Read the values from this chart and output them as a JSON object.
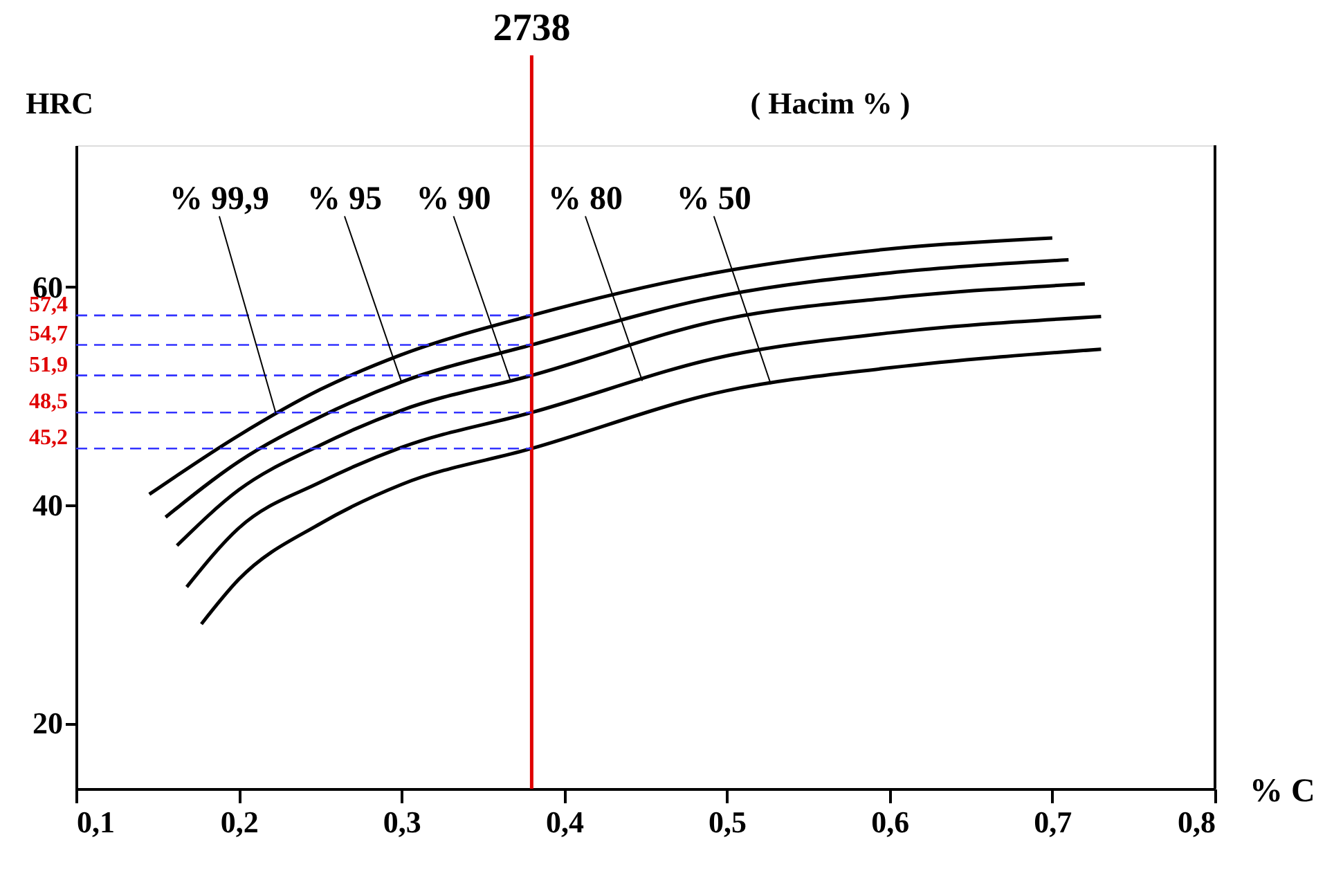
{
  "chart_data": {
    "type": "line",
    "xlabel": "% C",
    "ylabel": "HRC",
    "xlim": [
      0.1,
      0.8
    ],
    "ylim": [
      14,
      73
    ],
    "xticks": [
      {
        "value": 0.1,
        "label": "0,1"
      },
      {
        "value": 0.2,
        "label": "0,2"
      },
      {
        "value": 0.3,
        "label": "0,3"
      },
      {
        "value": 0.4,
        "label": "0,4"
      },
      {
        "value": 0.5,
        "label": "0,5"
      },
      {
        "value": 0.6,
        "label": "0,6"
      },
      {
        "value": 0.7,
        "label": "0,7"
      },
      {
        "value": 0.8,
        "label": "0,8"
      }
    ],
    "yticks": [
      20,
      40,
      60
    ],
    "grid": false,
    "legend": false,
    "marker": "none",
    "line_style": "solid",
    "series": [
      {
        "color": "#000000",
        "x": [
          0.145,
          0.2,
          0.25,
          0.3,
          0.38,
          0.5,
          0.6,
          0.7
        ],
        "values": [
          41.0,
          46.4,
          50.6,
          53.8,
          57.4,
          61.5,
          63.5,
          64.5
        ]
      },
      {
        "color": "#000000",
        "x": [
          0.155,
          0.2,
          0.25,
          0.3,
          0.38,
          0.5,
          0.6,
          0.71
        ],
        "values": [
          38.9,
          44.0,
          48.1,
          51.3,
          54.7,
          59.3,
          61.3,
          62.5
        ]
      },
      {
        "color": "#000000",
        "x": [
          0.162,
          0.2,
          0.25,
          0.3,
          0.38,
          0.5,
          0.6,
          0.72
        ],
        "values": [
          36.3,
          41.4,
          45.5,
          48.7,
          51.9,
          57.1,
          59.0,
          60.3
        ]
      },
      {
        "color": "#000000",
        "x": [
          0.168,
          0.2,
          0.25,
          0.3,
          0.38,
          0.5,
          0.6,
          0.73
        ],
        "values": [
          32.5,
          37.9,
          42.1,
          45.3,
          48.5,
          53.7,
          55.8,
          57.3
        ]
      },
      {
        "color": "#000000",
        "x": [
          0.177,
          0.2,
          0.25,
          0.3,
          0.38,
          0.5,
          0.6,
          0.73
        ],
        "values": [
          29.1,
          33.2,
          38.3,
          41.9,
          45.2,
          50.5,
          52.6,
          54.3
        ]
      }
    ],
    "ref_lines": [
      {
        "axis": "x",
        "value": 0.38,
        "color": "#e00000",
        "line_style": "solid"
      },
      {
        "axis": "y",
        "value": 57.4,
        "label": "57,4",
        "color": "#3333ff",
        "line_style": "dashed"
      },
      {
        "axis": "y",
        "value": 54.7,
        "label": "54,7",
        "color": "#3333ff",
        "line_style": "dashed"
      },
      {
        "axis": "y",
        "value": 51.9,
        "label": "51,9",
        "color": "#3333ff",
        "line_style": "dashed"
      },
      {
        "axis": "y",
        "value": 48.5,
        "label": "48,5",
        "color": "#3333ff",
        "line_style": "dashed"
      },
      {
        "axis": "y",
        "value": 45.2,
        "label": "45,2",
        "color": "#3333ff",
        "line_style": "dashed"
      }
    ],
    "annotations": [
      "( Hacim % )",
      "2738",
      {
        "text": "% 99,9",
        "x": 0.223,
        "y": 48.3
      },
      {
        "text": "% 95",
        "x": 0.3,
        "y": 51.3
      },
      {
        "text": "% 90",
        "x": 0.367,
        "y": 51.4
      },
      {
        "text": "% 80",
        "x": 0.448,
        "y": 51.4
      },
      {
        "text": "% 50",
        "x": 0.527,
        "y": 51.1
      }
    ]
  }
}
